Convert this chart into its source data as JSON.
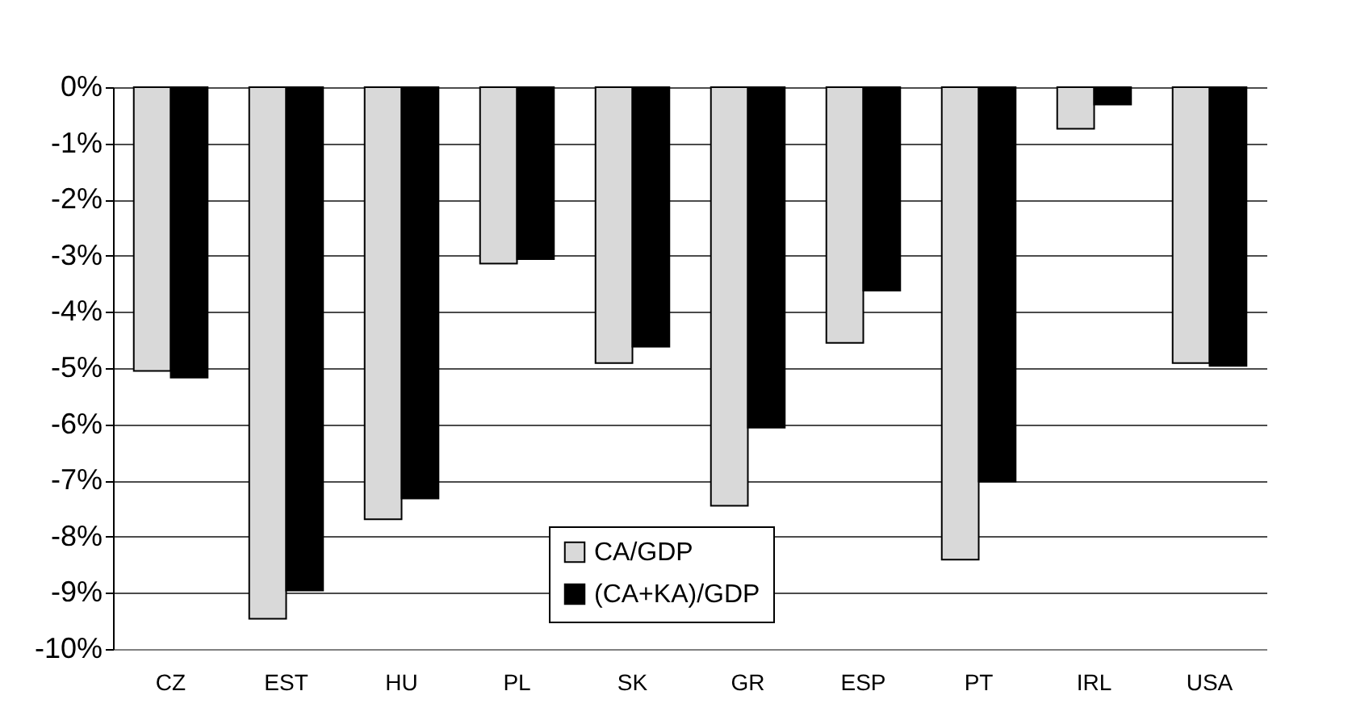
{
  "chart_data": {
    "type": "bar",
    "categories": [
      "CZ",
      "EST",
      "HU",
      "PL",
      "SK",
      "GR",
      "ESP",
      "PT",
      "IRL",
      "USA"
    ],
    "series": [
      {
        "name": "CA/GDP",
        "color": "#d9d9d9",
        "values": [
          -5.05,
          -9.46,
          -7.69,
          -3.14,
          -4.91,
          -7.45,
          -4.55,
          -8.41,
          -0.74,
          -4.91
        ]
      },
      {
        "name": "(CA+KA)/GDP",
        "color": "#000000",
        "values": [
          -5.17,
          -8.96,
          -7.32,
          -3.06,
          -4.62,
          -6.06,
          -3.62,
          -7.02,
          -0.31,
          -4.96
        ]
      }
    ],
    "ylim": [
      -10,
      0
    ],
    "yticks": [
      {
        "value": 0,
        "label": "0%"
      },
      {
        "value": -1,
        "label": "-1%"
      },
      {
        "value": -2,
        "label": "-2%"
      },
      {
        "value": -3,
        "label": "-3%"
      },
      {
        "value": -4,
        "label": "-4%"
      },
      {
        "value": -5,
        "label": "-5%"
      },
      {
        "value": -6,
        "label": "-6%"
      },
      {
        "value": -7,
        "label": "-7%"
      },
      {
        "value": -8,
        "label": "-8%"
      },
      {
        "value": -9,
        "label": "-9%"
      },
      {
        "value": -10,
        "label": "-10%"
      }
    ],
    "grid": "y",
    "legend": "bottom"
  }
}
